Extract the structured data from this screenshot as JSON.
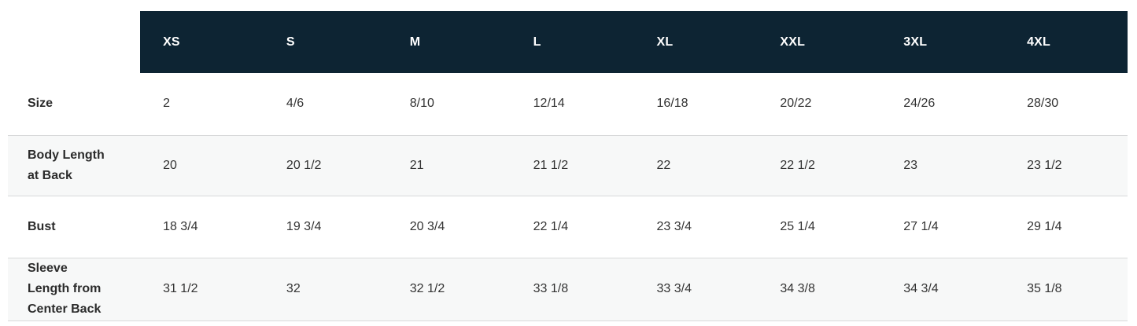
{
  "table": {
    "name": "size-chart",
    "columns": [
      "XS",
      "S",
      "M",
      "L",
      "XL",
      "XXL",
      "3XL",
      "4XL"
    ],
    "rows": [
      {
        "label": "Size",
        "values": [
          "2",
          "4/6",
          "8/10",
          "12/14",
          "16/18",
          "20/22",
          "24/26",
          "28/30"
        ]
      },
      {
        "label": "Body Length at Back",
        "values": [
          "20",
          "20 1/2",
          "21",
          "21 1/2",
          "22",
          "22 1/2",
          "23",
          "23 1/2"
        ]
      },
      {
        "label": "Bust",
        "values": [
          "18 3/4",
          "19 3/4",
          "20 3/4",
          "22 1/4",
          "23 3/4",
          "25 1/4",
          "27 1/4",
          "29 1/4"
        ]
      },
      {
        "label": "Sleeve Length from Center Back",
        "values": [
          "31 1/2",
          "32",
          "32 1/2",
          "33 1/8",
          "33 3/4",
          "34 3/8",
          "34 3/4",
          "35 1/8"
        ]
      }
    ],
    "colors": {
      "header_bg": "#0d2433",
      "header_text": "#ffffff",
      "shaded_row_bg": "#f7f8f8",
      "divider": "#d8d9da",
      "body_text": "#333333",
      "label_text": "#2b2b2b"
    }
  }
}
